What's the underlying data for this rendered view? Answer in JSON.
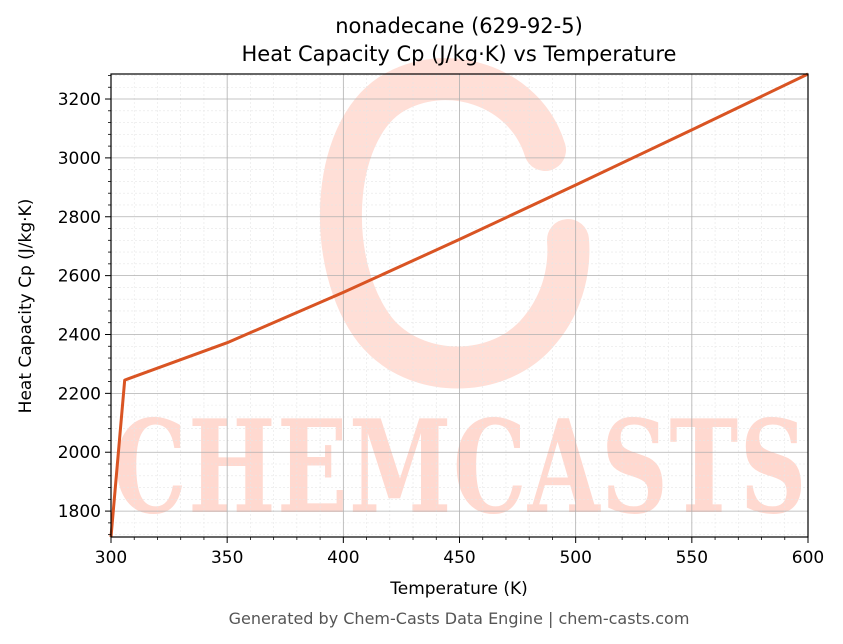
{
  "chart_data": {
    "type": "line",
    "title": "nonadecane (629-92-5)",
    "subtitle": "Heat Capacity Cp (J/kg·K) vs Temperature",
    "xlabel": "Temperature (K)",
    "ylabel": "Heat Capacity Cp (J/kg·K)",
    "xlim": [
      300,
      600
    ],
    "ylim": [
      1712,
      3285
    ],
    "xticks": [
      300,
      350,
      400,
      450,
      500,
      550,
      600
    ],
    "yticks": [
      1800,
      2000,
      2200,
      2400,
      2600,
      2800,
      3000,
      3200
    ],
    "grid": true,
    "series": [
      {
        "x": [
          300,
          305.9,
          350,
          400,
          450,
          500,
          550,
          600
        ],
        "y": [
          1712,
          2245,
          2372,
          2543,
          2723,
          2908,
          3095,
          3285
        ]
      }
    ]
  },
  "colors": {
    "line": "#d95423",
    "watermark": "#ffd9d0"
  },
  "watermark": {
    "text": "CHEMCASTS"
  },
  "footer": "Generated by Chem-Casts Data Engine | chem-casts.com"
}
